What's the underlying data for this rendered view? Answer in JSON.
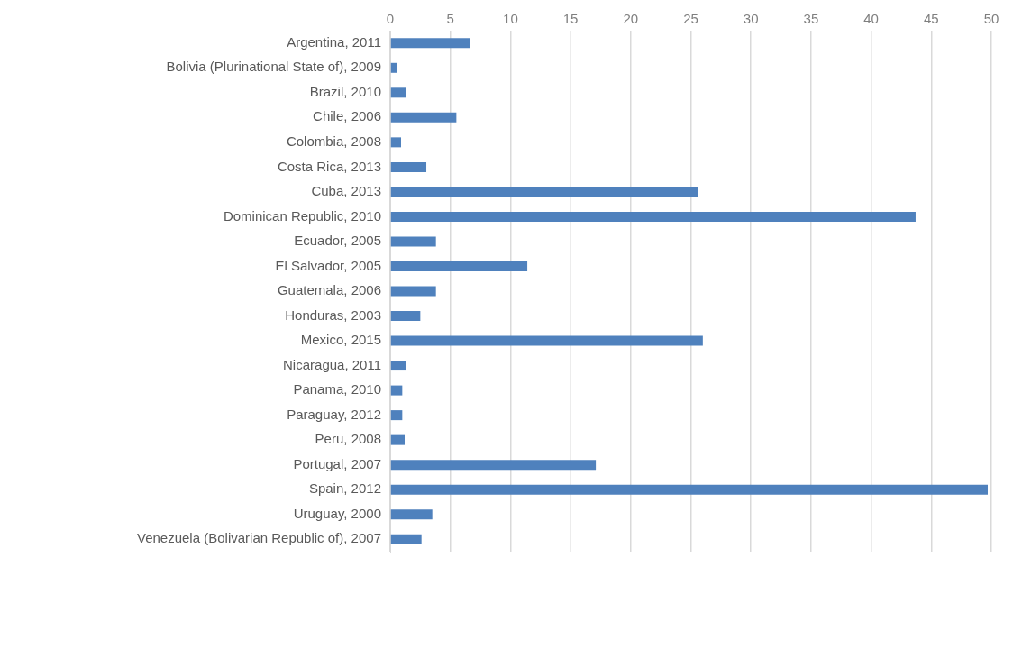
{
  "chart_data": {
    "type": "bar",
    "orientation": "horizontal",
    "categories": [
      "Argentina, 2011",
      "Bolivia (Plurinational State of), 2009",
      "Brazil, 2010",
      "Chile, 2006",
      "Colombia, 2008",
      "Costa Rica, 2013",
      "Cuba, 2013",
      "Dominican Republic, 2010",
      "Ecuador, 2005",
      "El Salvador, 2005",
      "Guatemala, 2006",
      "Honduras, 2003",
      "Mexico, 2015",
      "Nicaragua, 2011",
      "Panama, 2010",
      "Paraguay, 2012",
      "Peru, 2008",
      "Portugal, 2007",
      "Spain, 2012",
      "Uruguay, 2000",
      "Venezuela (Bolivarian Republic of), 2007"
    ],
    "values": [
      6.6,
      0.6,
      1.3,
      5.5,
      0.9,
      3.0,
      25.6,
      43.7,
      3.8,
      11.4,
      3.8,
      2.5,
      26.0,
      1.3,
      1.0,
      1.0,
      1.2,
      17.1,
      49.7,
      3.5,
      2.6
    ],
    "color": "#4f81bd",
    "xlim": [
      0,
      50
    ],
    "xticks": [
      0,
      5,
      10,
      15,
      20,
      25,
      30,
      35,
      40,
      45,
      50
    ],
    "grid": "x",
    "legend": false
  }
}
